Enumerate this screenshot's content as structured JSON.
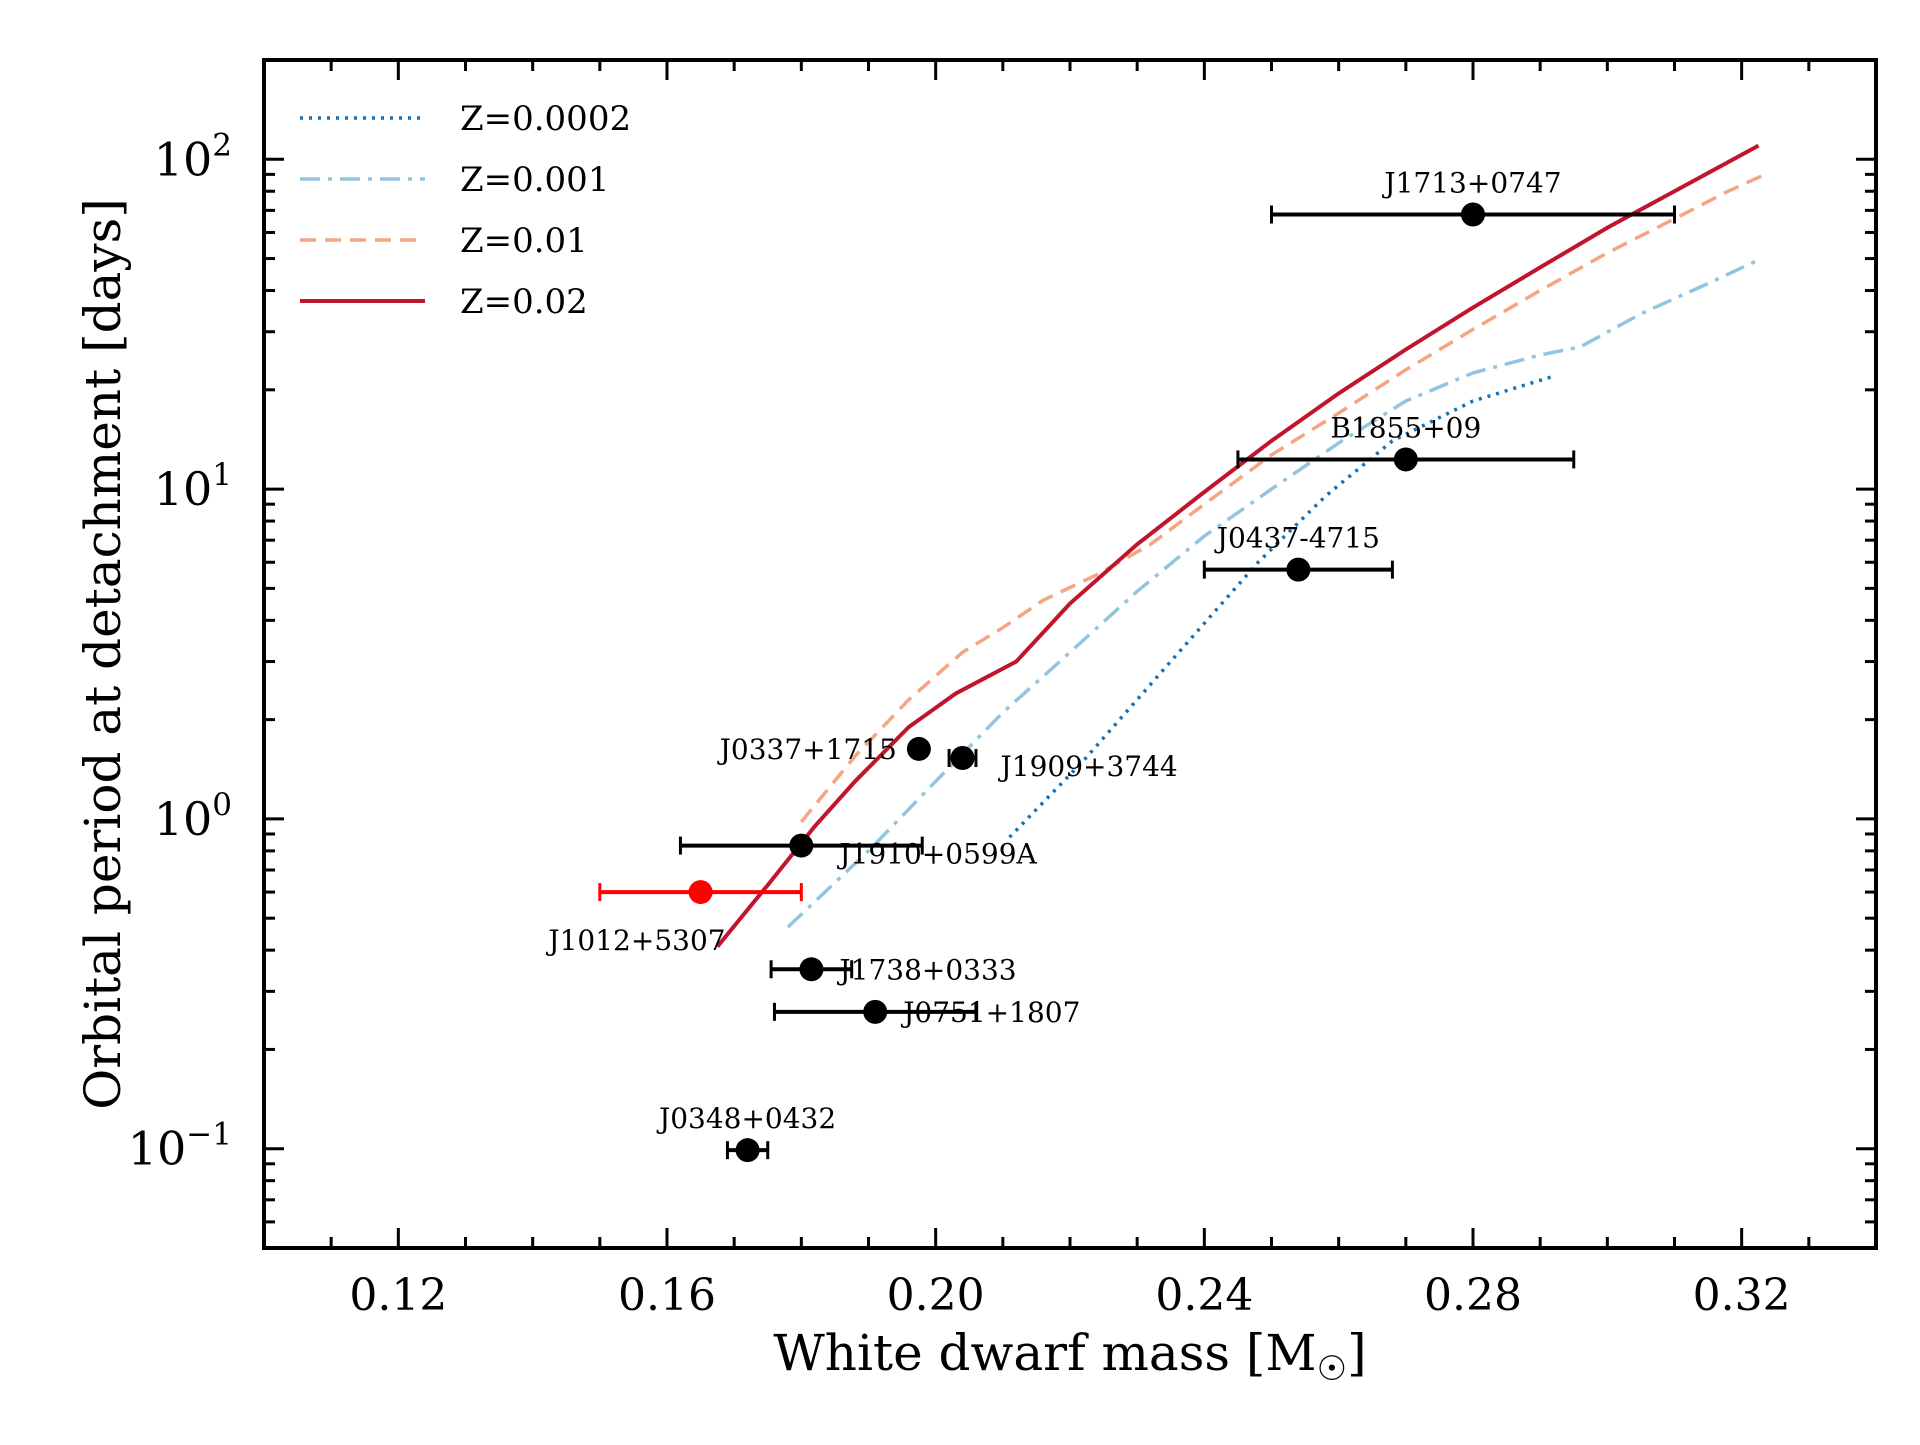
{
  "chart_data": {
    "type": "scatter",
    "title": "",
    "xlabel": "White dwarf mass [M",
    "xlabel_sub": "☉",
    "xlabel_close": "]",
    "ylabel": "Orbital period at detachment [days]",
    "xscale": "linear",
    "yscale": "log",
    "xlim": [
      0.1,
      0.34
    ],
    "ylim": [
      0.05,
      200
    ],
    "xticks": [
      {
        "value": 0.12,
        "label": "0.12"
      },
      {
        "value": 0.16,
        "label": "0.16"
      },
      {
        "value": 0.2,
        "label": "0.20"
      },
      {
        "value": 0.24,
        "label": "0.24"
      },
      {
        "value": 0.28,
        "label": "0.28"
      },
      {
        "value": 0.32,
        "label": "0.32"
      }
    ],
    "yticks": [
      {
        "value": 0.1,
        "base": "10",
        "exp": "−1"
      },
      {
        "value": 1,
        "base": "10",
        "exp": "0"
      },
      {
        "value": 10,
        "base": "10",
        "exp": "1"
      },
      {
        "value": 100,
        "base": "10",
        "exp": "2"
      }
    ],
    "legend_position": "top-left",
    "series": [
      {
        "name": "Z=0.0002",
        "color": "#1a6faf",
        "style": "dotted",
        "x": [
          0.211,
          0.222,
          0.235,
          0.248,
          0.258,
          0.268,
          0.28,
          0.292
        ],
        "y": [
          0.88,
          1.5,
          3.0,
          6.0,
          9.5,
          14.0,
          18.5,
          22.0
        ]
      },
      {
        "name": "Z=0.001",
        "color": "#92c5de",
        "style": "dashdot",
        "x": [
          0.178,
          0.19,
          0.2,
          0.21,
          0.22,
          0.23,
          0.24,
          0.25,
          0.26,
          0.27,
          0.28,
          0.29,
          0.296,
          0.305,
          0.315,
          0.322
        ],
        "y": [
          0.47,
          0.8,
          1.3,
          2.1,
          3.2,
          4.9,
          7.2,
          10.0,
          13.8,
          18.5,
          22.5,
          25.5,
          27.0,
          34.0,
          42.0,
          49.0
        ]
      },
      {
        "name": "Z=0.01",
        "color": "#f4a582",
        "style": "dashed",
        "x": [
          0.18,
          0.188,
          0.196,
          0.204,
          0.21,
          0.216,
          0.224,
          0.232,
          0.24,
          0.25,
          0.26,
          0.27,
          0.28,
          0.29,
          0.3,
          0.31,
          0.318,
          0.3235
        ],
        "y": [
          0.98,
          1.55,
          2.3,
          3.2,
          3.8,
          4.6,
          5.5,
          6.8,
          9.0,
          12.7,
          17.0,
          23.0,
          30.5,
          40.0,
          52.0,
          66.0,
          80.0,
          90.0
        ]
      },
      {
        "name": "Z=0.02",
        "color": "#c0152c",
        "style": "solid",
        "x": [
          0.1675,
          0.175,
          0.182,
          0.188,
          0.196,
          0.203,
          0.212,
          0.22,
          0.23,
          0.24,
          0.25,
          0.26,
          0.27,
          0.28,
          0.29,
          0.3,
          0.31,
          0.3225
        ],
        "y": [
          0.41,
          0.63,
          0.95,
          1.3,
          1.9,
          2.4,
          3.0,
          4.5,
          6.8,
          9.8,
          14.0,
          19.5,
          26.5,
          35.5,
          47.0,
          62.0,
          80.0,
          110.0
        ]
      }
    ],
    "points": [
      {
        "label": "J1713+0747",
        "x": 0.28,
        "y": 68.0,
        "xerr": [
          0.03,
          0.03
        ],
        "color": "#000000",
        "label_pos": "above"
      },
      {
        "label": "B1855+09",
        "x": 0.27,
        "y": 12.3,
        "xerr": [
          0.025,
          0.025
        ],
        "color": "#000000",
        "label_pos": "above"
      },
      {
        "label": "J0437-4715",
        "x": 0.254,
        "y": 5.7,
        "xerr": [
          0.014,
          0.014
        ],
        "color": "#000000",
        "label_pos": "above"
      },
      {
        "label": "J0337+1715",
        "x": 0.1975,
        "y": 1.63,
        "xerr": null,
        "color": "#000000",
        "label_pos": "left"
      },
      {
        "label": "J1909+3744",
        "x": 0.204,
        "y": 1.53,
        "xerr": [
          0.002,
          0.002
        ],
        "color": "#000000",
        "label_pos": "below-right"
      },
      {
        "label": "J1910+0599A",
        "x": 0.18,
        "y": 0.83,
        "xerr": [
          0.018,
          0.018
        ],
        "color": "#000000",
        "label_pos": "below-right"
      },
      {
        "label": "J1012+5307",
        "x": 0.165,
        "y": 0.6,
        "xerr": [
          0.015,
          0.015
        ],
        "color": "#ff0000",
        "label_pos": "below-left"
      },
      {
        "label": "J1738+0333",
        "x": 0.1815,
        "y": 0.35,
        "xerr": [
          0.006,
          0.006
        ],
        "color": "#000000",
        "label_pos": "right"
      },
      {
        "label": "J0751+1807",
        "x": 0.191,
        "y": 0.26,
        "xerr": [
          0.015,
          0.015
        ],
        "color": "#000000",
        "label_pos": "right"
      },
      {
        "label": "J0348+0432",
        "x": 0.172,
        "y": 0.099,
        "xerr": [
          0.003,
          0.003
        ],
        "color": "#000000",
        "label_pos": "above"
      }
    ]
  }
}
